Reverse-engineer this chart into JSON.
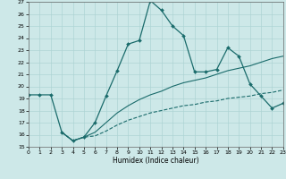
{
  "xlabel": "Humidex (Indice chaleur)",
  "xlim": [
    0,
    23
  ],
  "ylim": [
    15,
    27
  ],
  "xticks": [
    0,
    1,
    2,
    3,
    4,
    5,
    6,
    7,
    8,
    9,
    10,
    11,
    12,
    13,
    14,
    15,
    16,
    17,
    18,
    19,
    20,
    21,
    22,
    23
  ],
  "yticks": [
    15,
    16,
    17,
    18,
    19,
    20,
    21,
    22,
    23,
    24,
    25,
    26,
    27
  ],
  "bg_color": "#cde8e8",
  "line_color": "#1a6b6b",
  "grid_color": "#aed4d4",
  "line1_x": [
    0,
    1,
    2,
    3,
    4,
    5,
    6,
    7,
    8,
    9,
    10,
    11,
    12,
    13,
    14,
    15,
    16,
    17,
    18,
    19,
    20,
    21,
    22,
    23
  ],
  "line1_y": [
    19.3,
    19.3,
    19.3,
    16.2,
    15.5,
    15.8,
    17.0,
    19.2,
    21.3,
    23.5,
    23.8,
    27.1,
    26.3,
    25.0,
    24.2,
    21.2,
    21.2,
    21.4,
    23.2,
    22.5,
    20.2,
    19.2,
    18.2,
    18.6
  ],
  "line2_x": [
    3,
    4,
    5,
    6,
    7,
    8,
    9,
    10,
    11,
    12,
    13,
    14,
    15,
    16,
    17,
    18,
    19,
    20,
    21,
    22,
    23
  ],
  "line2_y": [
    16.2,
    15.5,
    15.8,
    16.2,
    17.0,
    17.8,
    18.4,
    18.9,
    19.3,
    19.6,
    20.0,
    20.3,
    20.5,
    20.7,
    21.0,
    21.3,
    21.5,
    21.7,
    22.0,
    22.3,
    22.5
  ],
  "line3_x": [
    3,
    4,
    5,
    6,
    7,
    8,
    9,
    10,
    11,
    12,
    13,
    14,
    15,
    16,
    17,
    18,
    19,
    20,
    21,
    22,
    23
  ],
  "line3_y": [
    16.2,
    15.5,
    15.8,
    15.9,
    16.3,
    16.8,
    17.2,
    17.5,
    17.8,
    18.0,
    18.2,
    18.4,
    18.5,
    18.7,
    18.8,
    19.0,
    19.1,
    19.2,
    19.4,
    19.5,
    19.7
  ]
}
